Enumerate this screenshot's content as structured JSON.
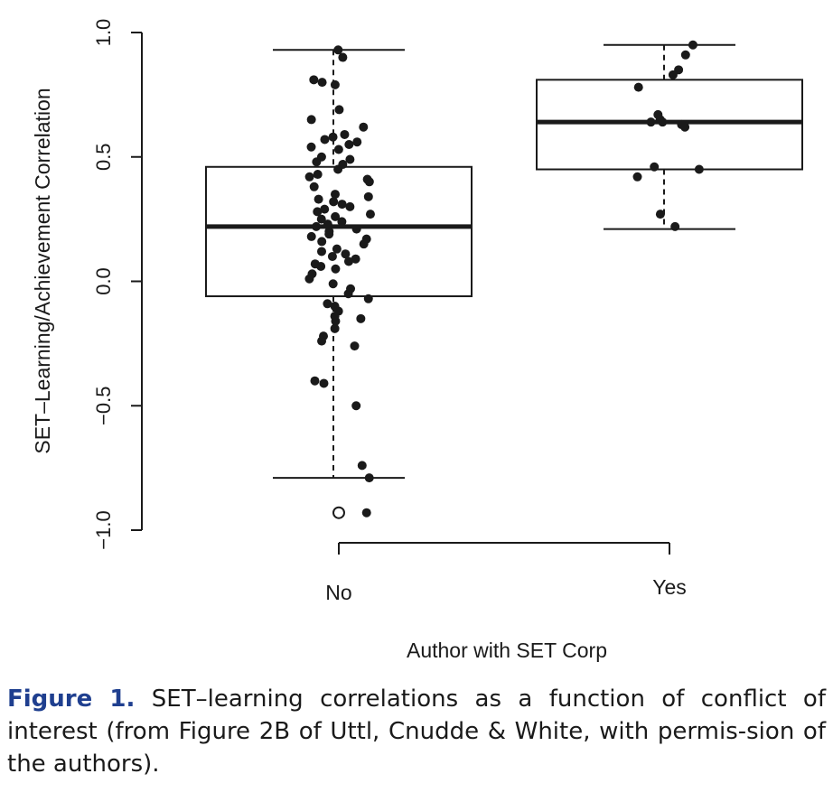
{
  "chart_data": {
    "type": "box",
    "xlabel": "Author with SET Corp",
    "ylabel": "SET–Learning/Achievement Correlation",
    "ylim": [
      -1.0,
      1.0
    ],
    "yticks": [
      {
        "value": -1.0,
        "label": "−1.0"
      },
      {
        "value": -0.5,
        "label": "−0.5"
      },
      {
        "value": 0.0,
        "label": "0.0"
      },
      {
        "value": 0.5,
        "label": "0.5"
      },
      {
        "value": 1.0,
        "label": "1.0"
      }
    ],
    "categories": [
      "No",
      "Yes"
    ],
    "grid": false,
    "groups": [
      {
        "name": "No",
        "whisker_low": -0.79,
        "q1": -0.06,
        "median": 0.22,
        "q3": 0.46,
        "whisker_high": 0.93,
        "outliers": [
          -0.93
        ],
        "points": [
          0.93,
          0.9,
          0.81,
          0.8,
          0.79,
          0.69,
          0.65,
          0.62,
          0.59,
          0.58,
          0.57,
          0.56,
          0.55,
          0.54,
          0.53,
          0.5,
          0.49,
          0.48,
          0.47,
          0.45,
          0.43,
          0.42,
          0.41,
          0.4,
          0.38,
          0.35,
          0.34,
          0.33,
          0.32,
          0.31,
          0.3,
          0.29,
          0.28,
          0.27,
          0.26,
          0.25,
          0.24,
          0.23,
          0.22,
          0.21,
          0.2,
          0.19,
          0.18,
          0.17,
          0.16,
          0.15,
          0.13,
          0.12,
          0.11,
          0.1,
          0.09,
          0.08,
          0.07,
          0.06,
          0.05,
          0.03,
          0.01,
          -0.01,
          -0.03,
          -0.05,
          -0.07,
          -0.09,
          -0.1,
          -0.12,
          -0.14,
          -0.15,
          -0.16,
          -0.19,
          -0.22,
          -0.24,
          -0.26,
          -0.4,
          -0.41,
          -0.5,
          -0.74,
          -0.79,
          -0.93
        ]
      },
      {
        "name": "Yes",
        "whisker_low": 0.21,
        "q1": 0.45,
        "median": 0.64,
        "q3": 0.81,
        "whisker_high": 0.95,
        "outliers": [],
        "points": [
          0.95,
          0.91,
          0.85,
          0.83,
          0.78,
          0.67,
          0.65,
          0.64,
          0.64,
          0.63,
          0.62,
          0.46,
          0.45,
          0.42,
          0.27,
          0.22
        ]
      }
    ]
  },
  "caption": {
    "label": "Figure 1.",
    "text": " SET–learning correlations as a function of conflict of interest (from Figure 2B of Uttl, Cnudde & White, with permis-sion of the authors)."
  }
}
